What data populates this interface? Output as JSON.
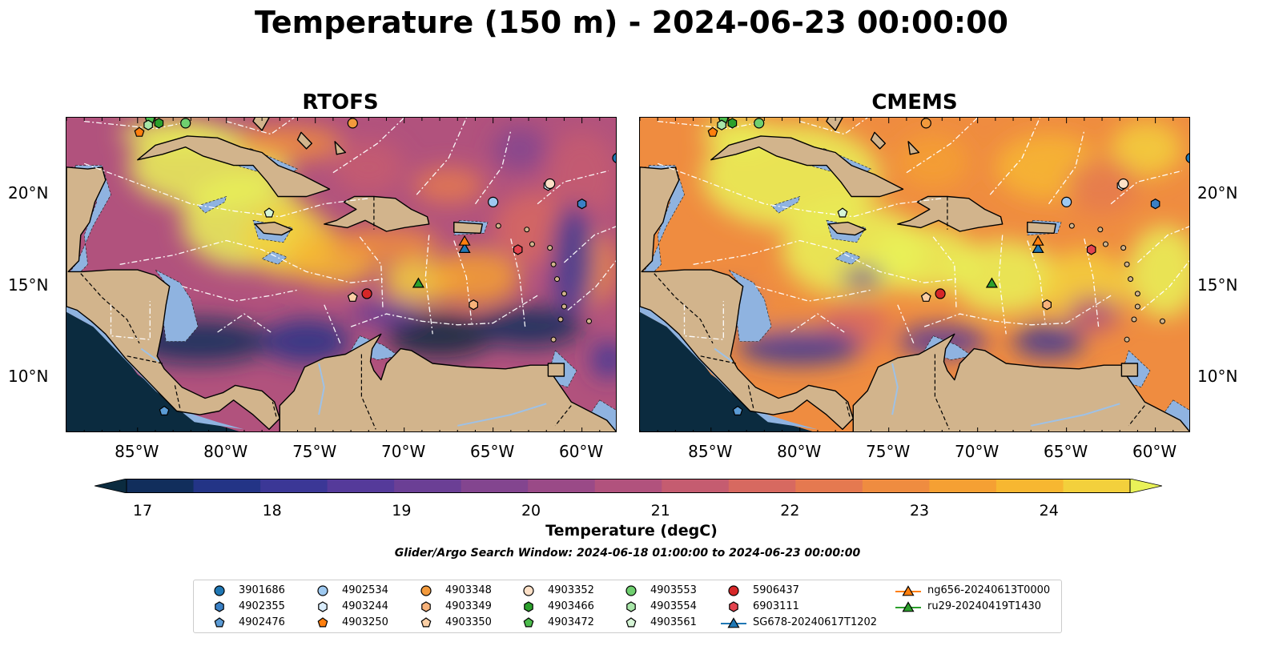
{
  "title": "Temperature (150 m) - 2024-06-23 00:00:00",
  "panels": [
    {
      "title": "RTOFS"
    },
    {
      "title": "CMEMS"
    }
  ],
  "axes": {
    "lon_ticks": [
      "85°W",
      "80°W",
      "75°W",
      "70°W",
      "65°W",
      "60°W"
    ],
    "lat_ticks": [
      "20°N",
      "15°N",
      "10°N"
    ],
    "lon_values": [
      -85,
      -80,
      -75,
      -70,
      -65,
      -60
    ],
    "lat_values": [
      20,
      15,
      10
    ],
    "lon_range": [
      -89,
      -58
    ],
    "lat_range": [
      7,
      24.2
    ]
  },
  "colorbar": {
    "label": "Temperature (degC)",
    "ticks": [
      "17",
      "18",
      "19",
      "20",
      "21",
      "22",
      "23",
      "24"
    ],
    "range": [
      17,
      24.5
    ],
    "colors": [
      "#0b2b3f",
      "#112e5c",
      "#233486",
      "#3b3796",
      "#553a9a",
      "#6b3f95",
      "#83458f",
      "#9a4a87",
      "#b1527d",
      "#c55c70",
      "#d76960",
      "#e57950",
      "#ef8c40",
      "#f5a033",
      "#f7b731",
      "#f3d03c",
      "#e9f258"
    ]
  },
  "search_window": "Glider/Argo Search Window: 2024-06-18 01:00:00 to 2024-06-23 00:00:00",
  "colors": {
    "land": "#d2b48c",
    "shelf": "#8fb3e0",
    "deep_cold": "#0b2b3f"
  },
  "map_data": {
    "markers": [
      {
        "id": "3901686",
        "shape": "circle",
        "color": "#1f77b4",
        "lon": -58,
        "lat": 22
      },
      {
        "id": "4902355",
        "shape": "hexagon",
        "color": "#3a80c5",
        "lon": -60,
        "lat": 19.5
      },
      {
        "id": "4902476",
        "shape": "pentagon",
        "color": "#5b9bd5",
        "lon": -83.5,
        "lat": 8.2
      },
      {
        "id": "4902534",
        "shape": "circle",
        "color": "#9ec9f0",
        "lon": -65,
        "lat": 19.6
      },
      {
        "id": "4903244",
        "shape": "hexagon",
        "color": "#d9ecfb",
        "lon": -61.9,
        "lat": 20.5
      },
      {
        "id": "4903250",
        "shape": "pentagon",
        "color": "#ff7f0e",
        "lon": -84.9,
        "lat": 23.4
      },
      {
        "id": "4903348",
        "shape": "circle",
        "color": "#f39a3c",
        "lon": -72.9,
        "lat": 23.9
      },
      {
        "id": "4903349",
        "shape": "hexagon",
        "color": "#f7b27a",
        "lon": -66.1,
        "lat": 14
      },
      {
        "id": "4903350",
        "shape": "pentagon",
        "color": "#fbcfa5",
        "lon": -72.9,
        "lat": 14.4
      },
      {
        "id": "4903352",
        "shape": "circle",
        "color": "#fde0c7",
        "lon": -61.8,
        "lat": 20.6
      },
      {
        "id": "4903466",
        "shape": "hexagon",
        "color": "#2ca02c",
        "lon": -83.8,
        "lat": 23.9
      },
      {
        "id": "4903472",
        "shape": "pentagon",
        "color": "#4cbc4c",
        "lon": -84.3,
        "lat": 24.1
      },
      {
        "id": "4903553",
        "shape": "circle",
        "color": "#6fcf6f",
        "lon": -82.3,
        "lat": 23.9
      },
      {
        "id": "4903554",
        "shape": "hexagon",
        "color": "#a8e6a8",
        "lon": -84.4,
        "lat": 23.8
      },
      {
        "id": "4903561",
        "shape": "pentagon",
        "color": "#d6f5d6",
        "lon": -77.6,
        "lat": 19
      },
      {
        "id": "5906437",
        "shape": "circle",
        "color": "#d62728",
        "lon": -72.1,
        "lat": 14.6
      },
      {
        "id": "6903111",
        "shape": "hexagon",
        "color": "#e3444f",
        "lon": -63.6,
        "lat": 17
      },
      {
        "id": "SG678-20240617T1202",
        "shape": "triangle",
        "color": "#1f77b4",
        "lon": -66.6,
        "lat": 17.1
      },
      {
        "id": "ng656-20240613T0000",
        "shape": "triangle",
        "color": "#ff7f0e",
        "lon": -66.6,
        "lat": 17.5
      },
      {
        "id": "ru29-20240419T1430",
        "shape": "triangle",
        "color": "#2ca02c",
        "lon": -69.2,
        "lat": 15.2
      }
    ]
  },
  "legend": {
    "items": [
      {
        "label": "3901686",
        "shape": "circle",
        "color": "#1f77b4"
      },
      {
        "label": "4902355",
        "shape": "hexagon",
        "color": "#3a80c5"
      },
      {
        "label": "4902476",
        "shape": "pentagon",
        "color": "#5b9bd5"
      },
      {
        "label": "4902534",
        "shape": "circle",
        "color": "#9ec9f0"
      },
      {
        "label": "4903244",
        "shape": "hexagon",
        "color": "#d9ecfb"
      },
      {
        "label": "4903250",
        "shape": "pentagon",
        "color": "#ff7f0e"
      },
      {
        "label": "4903348",
        "shape": "circle",
        "color": "#f39a3c"
      },
      {
        "label": "4903349",
        "shape": "hexagon",
        "color": "#f7b27a"
      },
      {
        "label": "4903350",
        "shape": "pentagon",
        "color": "#fbcfa5"
      },
      {
        "label": "4903352",
        "shape": "circle",
        "color": "#fde0c7"
      },
      {
        "label": "4903466",
        "shape": "hexagon",
        "color": "#2ca02c"
      },
      {
        "label": "4903472",
        "shape": "pentagon",
        "color": "#4cbc4c"
      },
      {
        "label": "4903553",
        "shape": "circle",
        "color": "#6fcf6f"
      },
      {
        "label": "4903554",
        "shape": "hexagon",
        "color": "#a8e6a8"
      },
      {
        "label": "4903561",
        "shape": "pentagon",
        "color": "#d6f5d6"
      },
      {
        "label": "5906437",
        "shape": "circle",
        "color": "#d62728"
      },
      {
        "label": "6903111",
        "shape": "hexagon",
        "color": "#e3444f"
      },
      {
        "label": "SG678-20240617T1202",
        "shape": "triangle-line",
        "color": "#1f77b4"
      },
      {
        "label": "ng656-20240613T0000",
        "shape": "triangle-line",
        "color": "#ff7f0e"
      },
      {
        "label": "ru29-20240419T1430",
        "shape": "triangle-line",
        "color": "#2ca02c"
      }
    ]
  }
}
